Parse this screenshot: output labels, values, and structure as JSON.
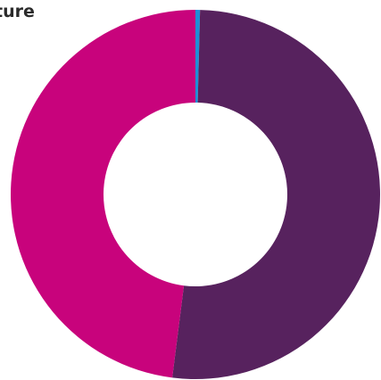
{
  "chart_data": {
    "type": "pie",
    "donut": true,
    "title": "ture",
    "slices": [
      {
        "value": 0.4,
        "color": "#1d8fd6"
      },
      {
        "value": 51.6,
        "color": "#57225e"
      },
      {
        "value": 48.0,
        "color": "#c8037c"
      }
    ],
    "legend": false
  }
}
